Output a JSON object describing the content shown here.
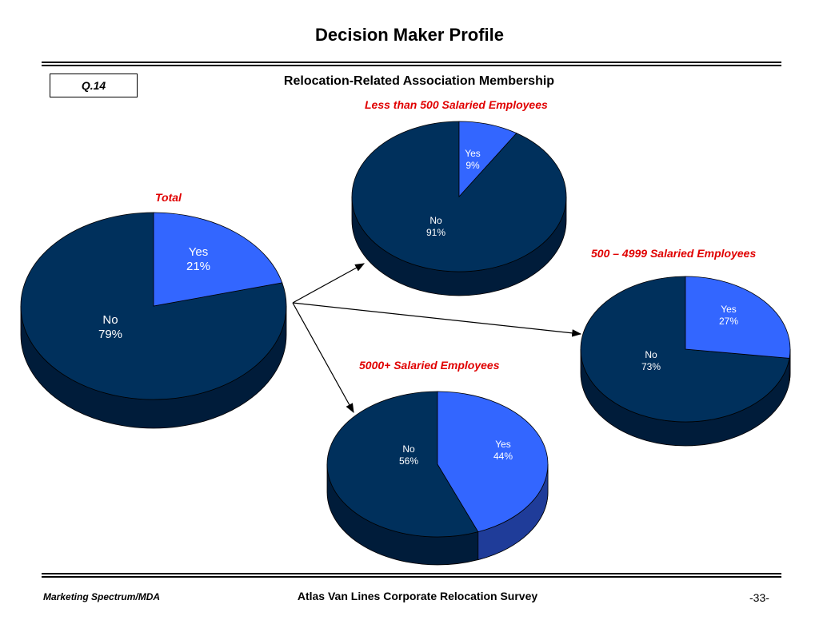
{
  "header": {
    "title": "Decision Maker Profile",
    "question": "Q.14",
    "subtitle": "Relocation-Related Association Membership"
  },
  "footer": {
    "left": "Marketing Spectrum/MDA",
    "center": "Atlas Van Lines Corporate Relocation Survey",
    "page": "-33-"
  },
  "colors": {
    "yes": "#3366ff",
    "no": "#00305c",
    "label": "#e00000"
  },
  "chart_data": [
    {
      "type": "pie",
      "title": "Total",
      "slices": [
        {
          "label": "Yes",
          "value": 21,
          "value_label": "21%"
        },
        {
          "label": "No",
          "value": 79,
          "value_label": "79%"
        }
      ]
    },
    {
      "type": "pie",
      "title": "Less than 500 Salaried Employees",
      "slices": [
        {
          "label": "Yes",
          "value": 9,
          "value_label": "9%"
        },
        {
          "label": "No",
          "value": 91,
          "value_label": "91%"
        }
      ]
    },
    {
      "type": "pie",
      "title": "500 – 4999 Salaried Employees",
      "slices": [
        {
          "label": "Yes",
          "value": 27,
          "value_label": "27%"
        },
        {
          "label": "No",
          "value": 73,
          "value_label": "73%"
        }
      ]
    },
    {
      "type": "pie",
      "title": "5000+ Salaried Employees",
      "slices": [
        {
          "label": "Yes",
          "value": 44,
          "value_label": "44%"
        },
        {
          "label": "No",
          "value": 56,
          "value_label": "56%"
        }
      ]
    }
  ]
}
